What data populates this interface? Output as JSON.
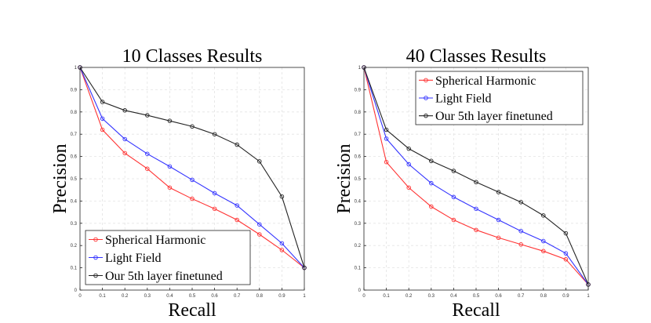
{
  "chart_data": [
    {
      "type": "line",
      "title": "10 Classes Results",
      "xlabel": "Recall",
      "ylabel": "Precision",
      "xlim": [
        0,
        1
      ],
      "ylim": [
        0,
        1
      ],
      "xticks": [
        "0",
        "0.1",
        "0.2",
        "0.3",
        "0.4",
        "0.5",
        "0.6",
        "0.7",
        "0.8",
        "0.9",
        "1"
      ],
      "yticks": [
        "0",
        "0.1",
        "0.2",
        "0.3",
        "0.4",
        "0.5",
        "0.6",
        "0.7",
        "0.8",
        "0.9",
        "1"
      ],
      "grid": true,
      "legend_position": "bottom-left",
      "x": [
        0,
        0.1,
        0.2,
        0.3,
        0.4,
        0.5,
        0.6,
        0.7,
        0.8,
        0.9,
        1.0
      ],
      "series": [
        {
          "name": "Spherical Harmonic",
          "color": "#ff3333",
          "marker": "circle",
          "values": [
            1.0,
            0.72,
            0.615,
            0.545,
            0.46,
            0.41,
            0.365,
            0.315,
            0.25,
            0.18,
            0.1
          ]
        },
        {
          "name": "Light Field",
          "color": "#3333ff",
          "marker": "circle",
          "values": [
            1.0,
            0.77,
            0.678,
            0.612,
            0.555,
            0.495,
            0.435,
            0.38,
            0.295,
            0.21,
            0.1
          ]
        },
        {
          "name": "Our 5th layer finetuned",
          "color": "#222222",
          "marker": "circle",
          "values": [
            1.0,
            0.845,
            0.807,
            0.785,
            0.76,
            0.735,
            0.7,
            0.653,
            0.578,
            0.42,
            0.1
          ]
        }
      ]
    },
    {
      "type": "line",
      "title": "40 Classes Results",
      "xlabel": "Recall",
      "ylabel": "Precision",
      "xlim": [
        0,
        1
      ],
      "ylim": [
        0,
        1
      ],
      "xticks": [
        "0",
        "0.1",
        "0.2",
        "0.3",
        "0.4",
        "0.5",
        "0.6",
        "0.7",
        "0.8",
        "0.9",
        "1"
      ],
      "yticks": [
        "0",
        "0.1",
        "0.2",
        "0.3",
        "0.4",
        "0.5",
        "0.6",
        "0.7",
        "0.8",
        "0.9",
        "1"
      ],
      "grid": true,
      "legend_position": "top-right",
      "x": [
        0,
        0.1,
        0.2,
        0.3,
        0.4,
        0.5,
        0.6,
        0.7,
        0.8,
        0.9,
        1.0
      ],
      "series": [
        {
          "name": "Spherical Harmonic",
          "color": "#ff3333",
          "marker": "circle",
          "values": [
            1.0,
            0.575,
            0.46,
            0.375,
            0.315,
            0.27,
            0.235,
            0.205,
            0.175,
            0.138,
            0.025
          ]
        },
        {
          "name": "Light Field",
          "color": "#3333ff",
          "marker": "circle",
          "values": [
            1.0,
            0.68,
            0.565,
            0.48,
            0.418,
            0.365,
            0.315,
            0.265,
            0.22,
            0.165,
            0.025
          ]
        },
        {
          "name": "Our 5th layer finetuned",
          "color": "#222222",
          "marker": "circle",
          "values": [
            1.0,
            0.72,
            0.635,
            0.58,
            0.535,
            0.485,
            0.44,
            0.395,
            0.335,
            0.255,
            0.025
          ]
        }
      ]
    }
  ]
}
